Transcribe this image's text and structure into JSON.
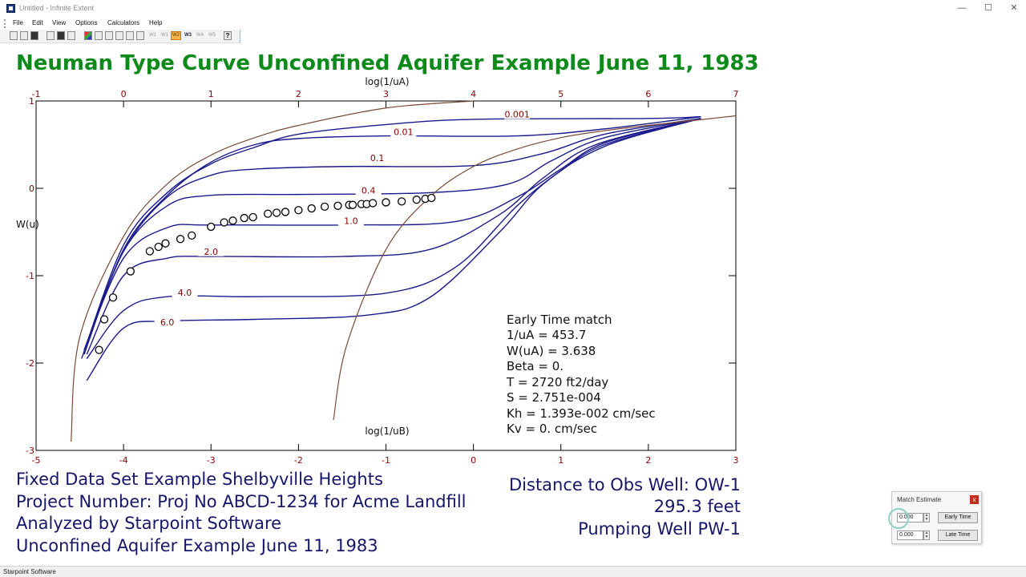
{
  "window": {
    "title": "Untitled - Infinite Extent",
    "min_glyph": "—",
    "max_glyph": "☐",
    "close_glyph": "✕"
  },
  "menu": [
    "File",
    "Edit",
    "View",
    "Options",
    "Calculators",
    "Help"
  ],
  "toolbar": {
    "icons": [
      "new-icon",
      "open-icon",
      "save-icon",
      "select-icon",
      "grid-icon",
      "print-icon",
      "color-icon",
      "pointer-icon",
      "scale-icon",
      "table-icon",
      "zoom-icon",
      "curve-icon"
    ],
    "buttons": [
      {
        "label": "W1",
        "state": "normal"
      },
      {
        "label": "W2",
        "state": "active"
      },
      {
        "label": "W3",
        "state": "bold"
      },
      {
        "label": "W4",
        "state": "normal"
      },
      {
        "label": "W5",
        "state": "normal"
      }
    ],
    "help_glyph": "?"
  },
  "chart_title": "Neuman Type Curve Unconfined Aquifer Example June 11, 1983",
  "chart_data": {
    "type": "line",
    "top_axis": {
      "label": "log(1/uA)",
      "ticks": [
        "-1",
        "0",
        "1",
        "2",
        "3",
        "4",
        "5",
        "6",
        "7"
      ],
      "range": [
        -1,
        7
      ]
    },
    "bottom_axis": {
      "label": "log(1/uB)",
      "ticks": [
        "-5",
        "-4",
        "-3",
        "-2",
        "-1",
        "0",
        "1",
        "2",
        "3"
      ],
      "range": [
        -5,
        3
      ]
    },
    "y_axis": {
      "label": "W(u)",
      "ticks": [
        "1",
        "0",
        "-1",
        "-2",
        "-3"
      ],
      "range": [
        -3,
        1
      ]
    },
    "grid": false,
    "colors": {
      "type_curves": "#1a1a8c",
      "theis_curves": "#7a4a34",
      "tick_labels": "#8b0000",
      "data": "#000000"
    },
    "curve_labels": [
      {
        "label": "0.001",
        "x": 4.5,
        "y": 0.82
      },
      {
        "label": "0.01",
        "x": 3.2,
        "y": 0.62
      },
      {
        "label": "0.1",
        "x": 2.9,
        "y": 0.32
      },
      {
        "label": "0.4",
        "x": 2.8,
        "y": -0.05
      },
      {
        "label": "1.0",
        "x": 2.6,
        "y": -0.4
      },
      {
        "label": "2.0",
        "x": 1.0,
        "y": -0.75
      },
      {
        "label": "4.0",
        "x": 0.7,
        "y": -1.22
      },
      {
        "label": "6.0",
        "x": 0.5,
        "y": -1.56
      }
    ],
    "series": [
      {
        "beta": "0.001",
        "points": [
          [
            -0.48,
            -1.95
          ],
          [
            0,
            -0.65
          ],
          [
            0.5,
            -0.05
          ],
          [
            1,
            0.28
          ],
          [
            1.5,
            0.47
          ],
          [
            2,
            0.62
          ],
          [
            3,
            0.73
          ],
          [
            4,
            0.79
          ],
          [
            6,
            0.8
          ],
          [
            6.6,
            0.82
          ]
        ]
      },
      {
        "beta": "0.01",
        "points": [
          [
            -0.45,
            -1.9
          ],
          [
            0,
            -0.7
          ],
          [
            0.5,
            -0.08
          ],
          [
            1,
            0.3
          ],
          [
            1.5,
            0.5
          ],
          [
            2,
            0.57
          ],
          [
            3,
            0.6
          ],
          [
            4.5,
            0.6
          ],
          [
            5.5,
            0.68
          ],
          [
            6.6,
            0.82
          ]
        ]
      },
      {
        "beta": "0.1",
        "points": [
          [
            -0.45,
            -1.85
          ],
          [
            0,
            -0.72
          ],
          [
            0.5,
            -0.1
          ],
          [
            1,
            0.15
          ],
          [
            1.5,
            0.22
          ],
          [
            2.5,
            0.25
          ],
          [
            4,
            0.26
          ],
          [
            4.8,
            0.4
          ],
          [
            5.5,
            0.62
          ],
          [
            6.6,
            0.8
          ]
        ]
      },
      {
        "beta": "0.4",
        "points": [
          [
            -0.45,
            -1.85
          ],
          [
            0,
            -0.72
          ],
          [
            0.5,
            -0.2
          ],
          [
            1,
            -0.08
          ],
          [
            2,
            -0.07
          ],
          [
            3.5,
            -0.05
          ],
          [
            4.4,
            0.05
          ],
          [
            4.9,
            0.32
          ],
          [
            5.5,
            0.58
          ],
          [
            6.6,
            0.8
          ]
        ]
      },
      {
        "beta": "1.0",
        "points": [
          [
            -0.45,
            -1.85
          ],
          [
            0,
            -0.8
          ],
          [
            0.5,
            -0.45
          ],
          [
            1,
            -0.42
          ],
          [
            2.5,
            -0.42
          ],
          [
            3.8,
            -0.38
          ],
          [
            4.5,
            -0.1
          ],
          [
            5,
            0.22
          ],
          [
            5.5,
            0.52
          ],
          [
            6.6,
            0.8
          ]
        ]
      },
      {
        "beta": "2.0",
        "points": [
          [
            -0.42,
            -1.9
          ],
          [
            0,
            -1.0
          ],
          [
            0.5,
            -0.8
          ],
          [
            1,
            -0.78
          ],
          [
            2.5,
            -0.78
          ],
          [
            3.5,
            -0.7
          ],
          [
            4.3,
            -0.3
          ],
          [
            4.8,
            0.12
          ],
          [
            5.4,
            0.5
          ],
          [
            6.6,
            0.8
          ]
        ]
      },
      {
        "beta": "4.0",
        "points": [
          [
            -0.42,
            -1.95
          ],
          [
            0,
            -1.4
          ],
          [
            0.5,
            -1.24
          ],
          [
            1.5,
            -1.24
          ],
          [
            3,
            -1.2
          ],
          [
            3.8,
            -0.9
          ],
          [
            4.5,
            -0.2
          ],
          [
            5,
            0.2
          ],
          [
            5.5,
            0.5
          ],
          [
            6.6,
            0.8
          ]
        ]
      },
      {
        "beta": "6.0",
        "points": [
          [
            -0.42,
            -2.2
          ],
          [
            0,
            -1.6
          ],
          [
            0.5,
            -1.52
          ],
          [
            1.5,
            -1.5
          ],
          [
            2.8,
            -1.45
          ],
          [
            3.5,
            -1.25
          ],
          [
            4.3,
            -0.5
          ],
          [
            4.8,
            0.05
          ],
          [
            5.5,
            0.48
          ],
          [
            6.6,
            0.8
          ]
        ]
      },
      {
        "beta": "Theis A",
        "points": [
          [
            -0.6,
            -2.9
          ],
          [
            -0.5,
            -1.7
          ],
          [
            0,
            -0.55
          ],
          [
            0.5,
            0.05
          ],
          [
            1,
            0.38
          ],
          [
            1.5,
            0.58
          ],
          [
            2,
            0.72
          ],
          [
            3,
            0.92
          ],
          [
            4,
            1.0
          ]
        ]
      },
      {
        "beta": "Theis B",
        "points": [
          [
            2.4,
            -2.65
          ],
          [
            2.55,
            -1.8
          ],
          [
            3,
            -0.7
          ],
          [
            3.5,
            -0.1
          ],
          [
            4,
            0.25
          ],
          [
            4.5,
            0.45
          ],
          [
            5,
            0.58
          ],
          [
            5.5,
            0.66
          ],
          [
            6,
            0.72
          ],
          [
            7,
            0.83
          ]
        ]
      }
    ],
    "data_points": [
      [
        -0.28,
        -1.85
      ],
      [
        -0.22,
        -1.5
      ],
      [
        -0.12,
        -1.25
      ],
      [
        0.08,
        -0.95
      ],
      [
        0.3,
        -0.72
      ],
      [
        0.4,
        -0.67
      ],
      [
        0.48,
        -0.63
      ],
      [
        0.65,
        -0.58
      ],
      [
        0.78,
        -0.54
      ],
      [
        1.0,
        -0.44
      ],
      [
        1.15,
        -0.39
      ],
      [
        1.25,
        -0.37
      ],
      [
        1.38,
        -0.34
      ],
      [
        1.48,
        -0.33
      ],
      [
        1.65,
        -0.29
      ],
      [
        1.75,
        -0.28
      ],
      [
        1.85,
        -0.27
      ],
      [
        2.0,
        -0.25
      ],
      [
        2.15,
        -0.23
      ],
      [
        2.3,
        -0.21
      ],
      [
        2.45,
        -0.2
      ],
      [
        2.58,
        -0.19
      ],
      [
        2.62,
        -0.19
      ],
      [
        2.72,
        -0.18
      ],
      [
        2.78,
        -0.18
      ],
      [
        2.85,
        -0.17
      ],
      [
        3.0,
        -0.16
      ],
      [
        3.18,
        -0.15
      ],
      [
        3.35,
        -0.13
      ],
      [
        3.45,
        -0.12
      ],
      [
        3.52,
        -0.11
      ]
    ]
  },
  "match_info": [
    "Early Time match",
    "1/uA = 453.7",
    "W(uA) = 3.638",
    "Beta = 0.",
    "T = 2720 ft2/day",
    "S = 2.751e-004",
    "Kh = 1.393e-002 cm/sec",
    "Kv = 0. cm/sec"
  ],
  "footer_left": [
    "Fixed Data Set Example Shelbyville Heights",
    "Project Number: Proj No ABCD-1234 for Acme Landfill",
    "Analyzed by Starpoint Software",
    "Unconfined Aquifer Example June 11, 1983"
  ],
  "footer_right": [
    "Distance to Obs Well: OW-1",
    "295.3 feet",
    "Pumping Well PW-1"
  ],
  "match_estimate": {
    "title": "Match Estimate",
    "close_glyph": "x",
    "early_value": "0.000",
    "late_value": "0.000",
    "spin_up": "▲",
    "spin_down": "▼",
    "early_button": "Early Time",
    "late_button": "Late Time"
  },
  "status": "Starpoint Software"
}
